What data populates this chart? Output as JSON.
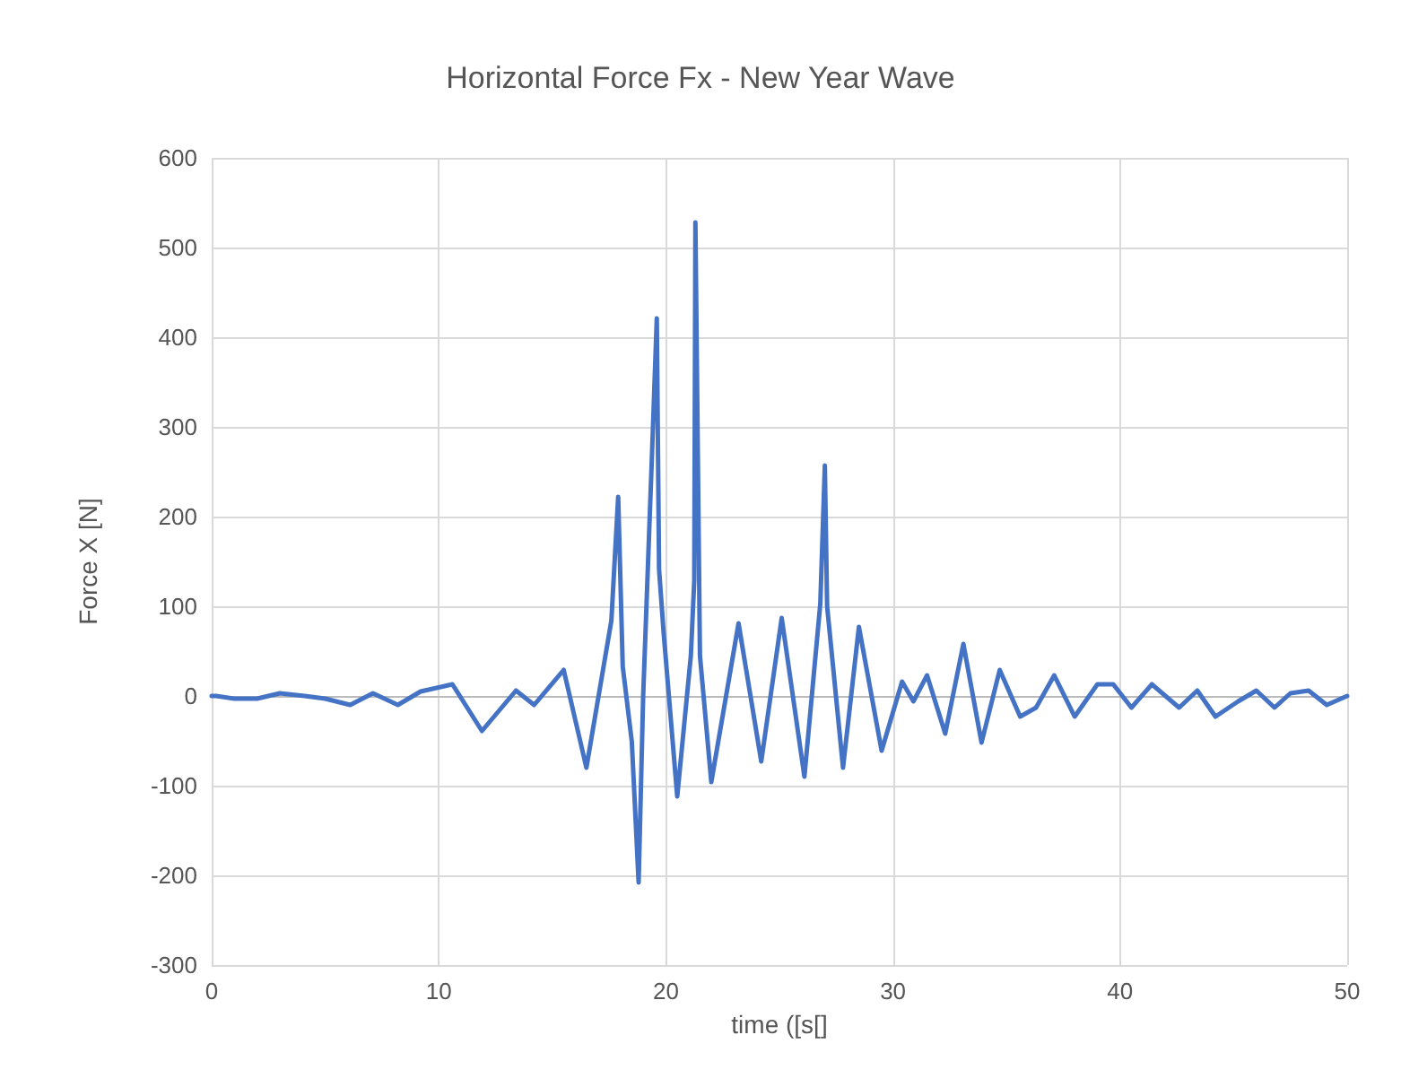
{
  "chart_data": {
    "type": "line",
    "title": "Horizontal Force Fx - New Year Wave",
    "xlabel": "time ([s[]",
    "ylabel": "Force X [N]",
    "x": [
      0,
      0.2,
      1,
      2,
      3,
      4.1,
      5,
      6.1,
      7.1,
      8.2,
      9.2,
      10.6,
      11.9,
      13.4,
      14.2,
      15.5,
      16.5,
      17.6,
      17.9,
      18.1,
      18.5,
      18.8,
      19.0,
      19.4,
      19.6,
      19.7,
      19.9,
      20.5,
      21.1,
      21.25,
      21.3,
      21.5,
      22.0,
      23.2,
      24.2,
      25.1,
      26.1,
      26.8,
      27.0,
      27.1,
      27.8,
      28.5,
      29.5,
      30.4,
      30.9,
      31.5,
      32.3,
      33.1,
      33.9,
      34.7,
      35.6,
      36.3,
      37.1,
      38.0,
      39.0,
      39.7,
      40.5,
      41.4,
      42.6,
      43.4,
      44.2,
      45.2,
      46.0,
      46.8,
      47.5,
      48.3,
      49.1,
      50
    ],
    "series": [
      {
        "color": "#4472c4",
        "values": [
          0,
          0,
          -3,
          -3,
          3,
          0,
          -3,
          -10,
          3,
          -10,
          5,
          13,
          -39,
          6,
          -10,
          29,
          -80,
          84,
          222,
          33,
          -51,
          -208,
          0,
          277,
          421,
          141,
          71,
          -112,
          45,
          129,
          528,
          45,
          -96,
          81,
          -73,
          87,
          -90,
          103,
          257,
          100,
          -80,
          77,
          -61,
          16,
          -6,
          23,
          -42,
          58,
          -52,
          29,
          -23,
          -13,
          23,
          -23,
          13,
          13,
          -13,
          13,
          -13,
          6,
          -23,
          -6,
          6,
          -13,
          3,
          6,
          -10,
          0
        ]
      }
    ],
    "xlim": [
      0,
      50
    ],
    "xticks": [
      0,
      10,
      20,
      30,
      40,
      50
    ],
    "ylim": [
      -300,
      600
    ],
    "yticks": [
      -300,
      -200,
      -100,
      0,
      100,
      200,
      300,
      400,
      500,
      600
    ],
    "grid": true,
    "marker": "none",
    "line_style": "solid"
  }
}
